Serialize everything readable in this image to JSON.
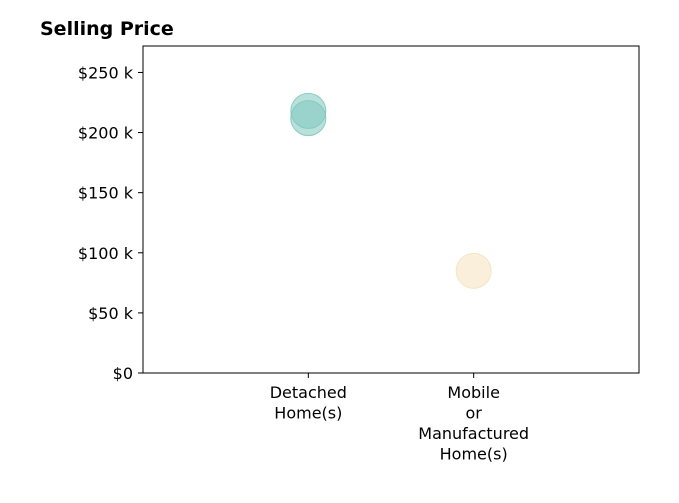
{
  "chart_data": {
    "type": "scatter",
    "title": "Selling Price",
    "xlabel": "",
    "ylabel": "",
    "categories": [
      {
        "lines": [
          "Detached",
          "Home(s)"
        ]
      },
      {
        "lines": [
          "Mobile",
          "or",
          "Manufactured",
          "Home(s)"
        ]
      }
    ],
    "xlim": [
      -1,
      2
    ],
    "ylim": [
      0,
      272000
    ],
    "yticks": [
      {
        "value": 0,
        "label": "$0"
      },
      {
        "value": 50000,
        "label": "$50 k"
      },
      {
        "value": 100000,
        "label": "$100 k"
      },
      {
        "value": 150000,
        "label": "$150 k"
      },
      {
        "value": 200000,
        "label": "$200 k"
      },
      {
        "value": 250000,
        "label": "$250 k"
      }
    ],
    "points": [
      {
        "category_index": 0,
        "y": 218000,
        "color": "#7fc8bd"
      },
      {
        "category_index": 0,
        "y": 212000,
        "color": "#7fc8bd"
      },
      {
        "category_index": 1,
        "y": 85000,
        "color": "#f5e2bb"
      }
    ],
    "grid": false,
    "legend": "none"
  }
}
